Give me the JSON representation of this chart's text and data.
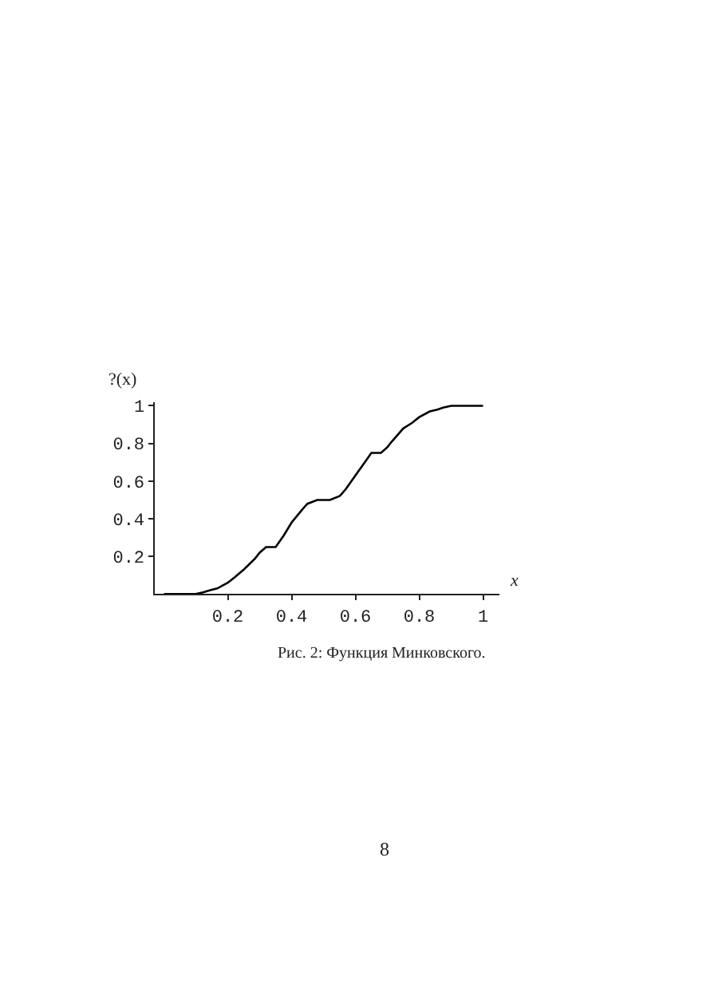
{
  "chart_data": {
    "type": "line",
    "xlabel": "x",
    "ylabel": "?(x)",
    "x": [
      0,
      0.05,
      0.1,
      0.125,
      0.143,
      0.167,
      0.2,
      0.222,
      0.25,
      0.286,
      0.3,
      0.32,
      0.333,
      0.35,
      0.375,
      0.4,
      0.429,
      0.444,
      0.45,
      0.48,
      0.5,
      0.52,
      0.55,
      0.556,
      0.571,
      0.6,
      0.625,
      0.65,
      0.667,
      0.68,
      0.7,
      0.714,
      0.75,
      0.778,
      0.8,
      0.833,
      0.857,
      0.875,
      0.9,
      0.95,
      1
    ],
    "series": [
      {
        "color": "#000000",
        "values": [
          0,
          0,
          0,
          0.01,
          0.02,
          0.03,
          0.06,
          0.09,
          0.13,
          0.19,
          0.22,
          0.25,
          0.25,
          0.25,
          0.31,
          0.38,
          0.44,
          0.47,
          0.48,
          0.5,
          0.5,
          0.5,
          0.52,
          0.53,
          0.56,
          0.63,
          0.69,
          0.75,
          0.75,
          0.75,
          0.78,
          0.81,
          0.88,
          0.91,
          0.94,
          0.97,
          0.98,
          0.99,
          1,
          1,
          1
        ]
      }
    ],
    "xlim": [
      -0.03,
      1.05
    ],
    "ylim": [
      0,
      1.02
    ],
    "xticks": [
      0.2,
      0.4,
      0.6,
      0.8,
      1
    ],
    "yticks": [
      0.2,
      0.4,
      0.6,
      0.8,
      1
    ],
    "marker": "none",
    "line_style": "solid",
    "annotations": [
      "Рис. 2: Функция Минковского.",
      "8"
    ]
  }
}
